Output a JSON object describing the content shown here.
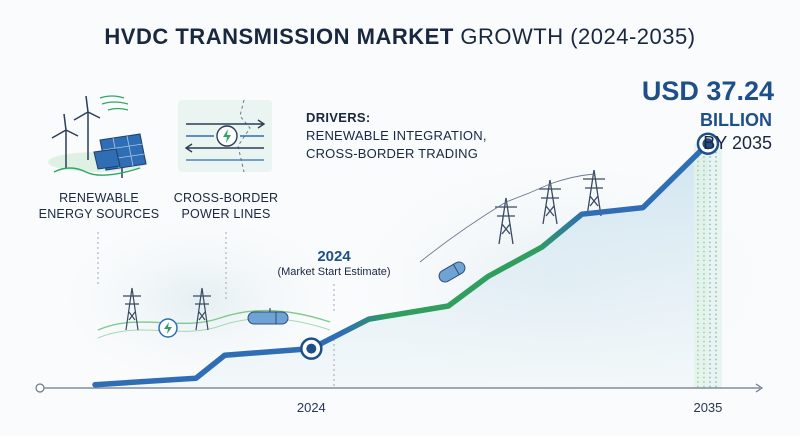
{
  "title": {
    "bold": "HVDC TRANSMISSION MARKET",
    "light": "GROWTH (2024-2035)"
  },
  "icons": [
    {
      "name": "renewable-energy-icon",
      "label_1": "RENEWABLE",
      "label_2": "ENERGY SOURCES"
    },
    {
      "name": "cross-border-lines-icon",
      "label_1": "CROSS-BORDER",
      "label_2": "POWER LINES"
    }
  ],
  "drivers": {
    "heading": "DRIVERS:",
    "line_1": "RENEWABLE INTEGRATION,",
    "line_2": "CROSS-BORDER TRADING"
  },
  "milestone": {
    "year": "2024",
    "note": "(Market Start Estimate)"
  },
  "endpoint": {
    "value": "USD 37.24",
    "unit": "BILLION",
    "by": "BY 2035"
  },
  "colors": {
    "line_light": "#2f9e5e",
    "line_dark": "#2f6db5",
    "marker": "#1f4f8a",
    "area": "#cfe3ef"
  },
  "chart_data": {
    "type": "line",
    "title": "HVDC TRANSMISSION MARKET GROWTH (2024-2035)",
    "xlabel": "",
    "ylabel": "",
    "x_ticks": [
      "2024",
      "2035"
    ],
    "xlim": [
      2018,
      2036
    ],
    "ylim": [
      0,
      50
    ],
    "grid": false,
    "series": [
      {
        "values_x": [
          2018.0,
          2020.8,
          2021.6,
          2024.0,
          2025.6,
          2027.8,
          2028.9,
          2030.4,
          2031.5,
          2033.2,
          2035.0
        ],
        "values_y": [
          0.5,
          1.5,
          5.0,
          6.0,
          10.5,
          12.5,
          17.0,
          21.5,
          26.5,
          27.5,
          37.24
        ]
      }
    ],
    "annotations": [
      {
        "x": 2024,
        "y": 6.0,
        "label": "2024"
      },
      {
        "x": 2035,
        "y": 37.24,
        "label": "USD 37.24 BILLION BY 2035"
      }
    ]
  }
}
